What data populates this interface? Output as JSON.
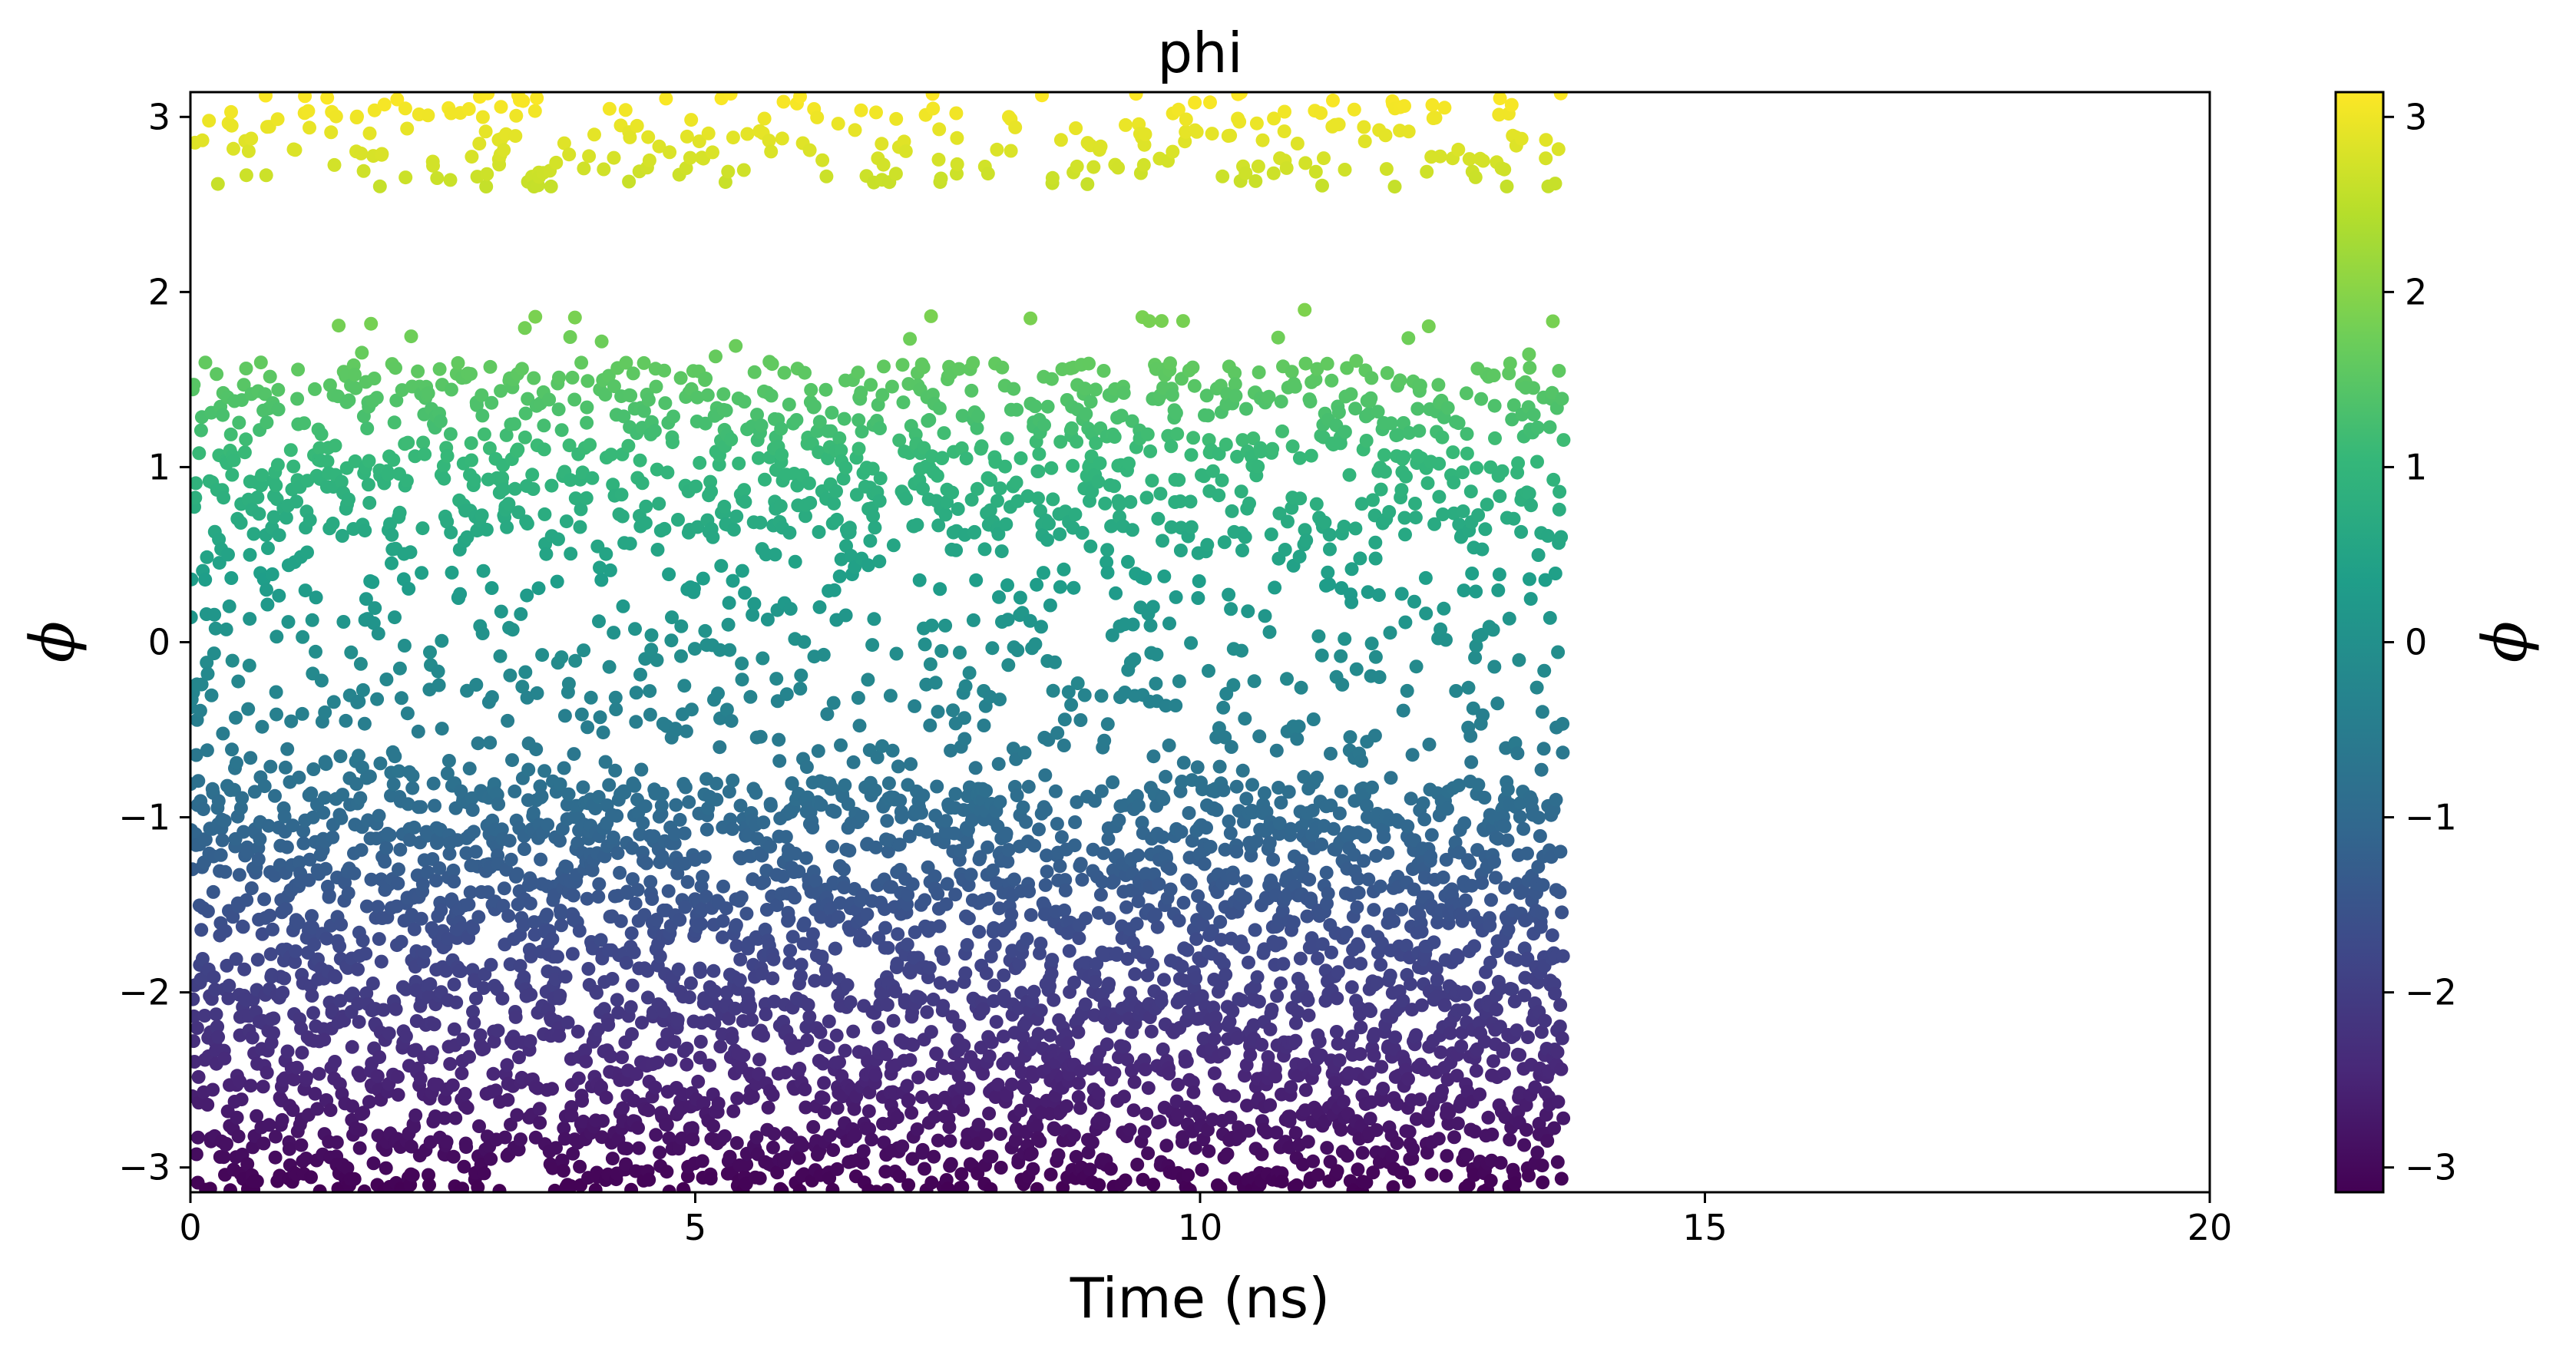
{
  "chart_data": {
    "type": "scatter",
    "title": "phi",
    "xlabel": "Time (ns)",
    "ylabel": "ϕ",
    "xlim": [
      0,
      20
    ],
    "ylim": [
      -3.14159,
      3.14159
    ],
    "x_ticks": [
      0,
      5,
      10,
      15,
      20
    ],
    "x_tick_labels": [
      "0",
      "5",
      "10",
      "15",
      "20"
    ],
    "y_ticks": [
      -3,
      -2,
      -1,
      0,
      1,
      2,
      3
    ],
    "y_tick_labels": [
      "−3",
      "−2",
      "−1",
      "0",
      "1",
      "2",
      "3"
    ],
    "grid": false,
    "legend": "none",
    "colormap": "viridis",
    "colorbar": {
      "label": "ϕ",
      "range": [
        -3.14159,
        3.14159
      ],
      "ticks": [
        -3,
        -2,
        -1,
        0,
        1,
        2,
        3
      ],
      "tick_labels": [
        "−3",
        "−2",
        "−1",
        "0",
        "1",
        "2",
        "3"
      ],
      "stops": [
        "#440154",
        "#482878",
        "#3e4989",
        "#31688e",
        "#26828e",
        "#1f9e89",
        "#35b779",
        "#6ece58",
        "#b5de2b",
        "#fde725"
      ]
    },
    "data_description": "Dense scatter of dihedral angle phi vs time, sampled every ~0.0025 ns from 0 to ~13.6 ns; points colored by phi value. Dense band between -3.14 and -0.8, moderate band 0.6 to 1.6, sparse middle, yellow band near 2.7 to 3.14, empty gap 1.9 to 2.6.",
    "x_data_end": 13.6,
    "regions": [
      {
        "y_range": [
          -3.14,
          -0.8
        ],
        "relative_density": 1.0
      },
      {
        "y_range": [
          -0.8,
          0.6
        ],
        "relative_density": 0.3
      },
      {
        "y_range": [
          0.6,
          1.6
        ],
        "relative_density": 0.7
      },
      {
        "y_range": [
          1.6,
          1.9
        ],
        "relative_density": 0.05
      },
      {
        "y_range": [
          2.6,
          3.14
        ],
        "relative_density": 0.35
      }
    ]
  }
}
